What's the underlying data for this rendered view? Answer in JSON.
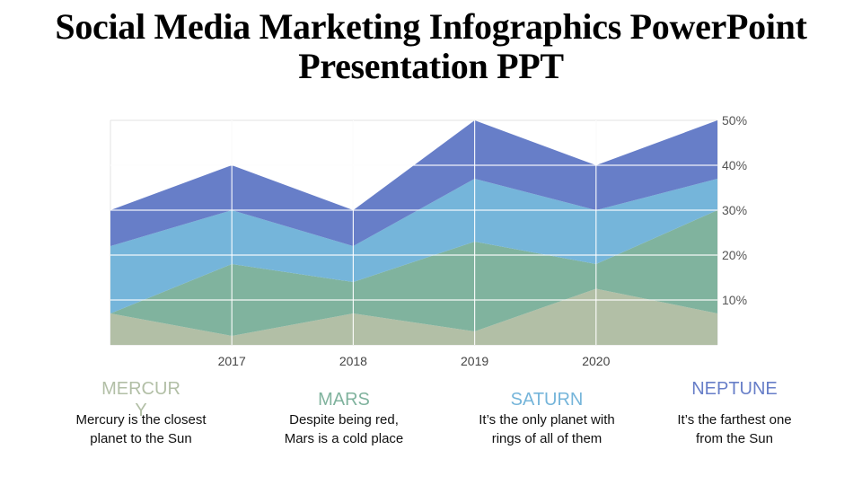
{
  "title": "Social Media Marketing Infographics PowerPoint Presentation PPT",
  "chart_data": {
    "type": "area",
    "stacked": true,
    "title": "",
    "xlabel": "",
    "ylabel": "",
    "x_positions": 6,
    "categories": [
      "",
      "2017",
      "2018",
      "2019",
      "2020",
      ""
    ],
    "ylim": [
      0,
      50
    ],
    "y_ticks": [
      10,
      20,
      30,
      40,
      50
    ],
    "y_tick_labels": [
      "10%",
      "20%",
      "30%",
      "40%",
      "50%"
    ],
    "y_axis_side": "right",
    "grid": true,
    "legend": "none",
    "series": [
      {
        "name": "Mercury",
        "color": "#b2bfa6",
        "values": [
          7,
          2,
          7,
          3,
          12.5,
          7
        ]
      },
      {
        "name": "Mars",
        "color": "#80b39e",
        "values": [
          0,
          16,
          7,
          20,
          5.5,
          23
        ]
      },
      {
        "name": "Saturn",
        "color": "#75b5da",
        "values": [
          15,
          12,
          8,
          14,
          12,
          7
        ]
      },
      {
        "name": "Neptune",
        "color": "#677ec8",
        "values": [
          8,
          10,
          8,
          13,
          10,
          13
        ]
      }
    ]
  },
  "cards": [
    {
      "title": "MERCURY",
      "color": "#b2bfa6",
      "text_line1": "Mercury is the closest",
      "text_line2": "planet to the Sun"
    },
    {
      "title": "MARS",
      "color": "#80b39e",
      "text_line1": "Despite being red,",
      "text_line2": "Mars is a cold place"
    },
    {
      "title": "SATURN",
      "color": "#75b5da",
      "text_line1": "It’s the only planet with",
      "text_line2": "rings of all of them"
    },
    {
      "title": "NEPTUNE",
      "color": "#677ec8",
      "text_line1": "It’s the farthest one",
      "text_line2": "from the Sun"
    }
  ]
}
